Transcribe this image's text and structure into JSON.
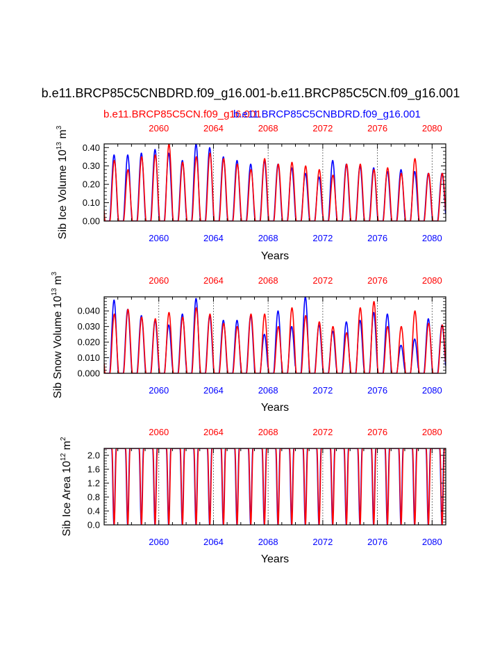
{
  "title": "b.e11.BRCP85C5CNBDRD.f09_g16.001-b.e11.BRCP85C5CN.f09_g16.001",
  "legend": {
    "red_label": "b.e11.BRCP85C5CN.f09_g16.001",
    "blue_label": "b.e11.BRCP85C5CNBDRD.f09_g16.001"
  },
  "colors": {
    "red": "#ff0000",
    "blue": "#0000ff",
    "axis": "#000000"
  },
  "chart_data": [
    {
      "type": "line",
      "name": "sib-ice-volume",
      "ylabel": "Sib Ice Volume 10",
      "ylabel_exp": "13",
      "ylabel_unit": " m",
      "ylabel_unit_exp": "3",
      "xlabel": "Years",
      "xlim": [
        2056.0,
        2081.0
      ],
      "ylim": [
        0.0,
        0.42
      ],
      "yticks": [
        0.0,
        0.1,
        0.2,
        0.3,
        0.4
      ],
      "ytick_labels": [
        "0.00",
        "0.10",
        "0.20",
        "0.30",
        "0.40"
      ],
      "xticks": [
        2060,
        2064,
        2068,
        2072,
        2076,
        2080
      ],
      "xtick_labels": [
        "2060",
        "2064",
        "2068",
        "2072",
        "2076",
        "2080"
      ],
      "series": [
        {
          "name": "b.e11.BRCP85C5CNBDRD.f09_g16.001",
          "color": "#0000ff",
          "annual_peaks": [
            0.36,
            0.36,
            0.37,
            0.39,
            0.37,
            0.33,
            0.42,
            0.4,
            0.35,
            0.33,
            0.31,
            0.33,
            0.31,
            0.29,
            0.26,
            0.24,
            0.33,
            0.31,
            0.3,
            0.29,
            0.27,
            0.28,
            0.27,
            0.26,
            0.26
          ]
        },
        {
          "name": "b.e11.BRCP85C5CN.f09_g16.001",
          "color": "#ff0000",
          "annual_peaks": [
            0.33,
            0.28,
            0.35,
            0.36,
            0.42,
            0.32,
            0.35,
            0.37,
            0.34,
            0.31,
            0.28,
            0.34,
            0.31,
            0.32,
            0.3,
            0.28,
            0.25,
            0.31,
            0.31,
            0.28,
            0.29,
            0.26,
            0.34,
            0.26,
            0.26
          ]
        }
      ]
    },
    {
      "type": "line",
      "name": "sib-snow-volume",
      "ylabel": "Sib Snow Volume 10",
      "ylabel_exp": "13",
      "ylabel_unit": " m",
      "ylabel_unit_exp": "3",
      "xlabel": "Years",
      "xlim": [
        2056.0,
        2081.0
      ],
      "ylim": [
        0.0,
        0.049
      ],
      "yticks": [
        0.0,
        0.01,
        0.02,
        0.03,
        0.04
      ],
      "ytick_labels": [
        "0.000",
        "0.010",
        "0.020",
        "0.030",
        "0.040"
      ],
      "xticks": [
        2060,
        2064,
        2068,
        2072,
        2076,
        2080
      ],
      "xtick_labels": [
        "2060",
        "2064",
        "2068",
        "2072",
        "2076",
        "2080"
      ],
      "series": [
        {
          "name": "b.e11.BRCP85C5CNBDRD.f09_g16.001",
          "color": "#0000ff",
          "annual_peaks": [
            0.047,
            0.041,
            0.037,
            0.034,
            0.031,
            0.038,
            0.048,
            0.037,
            0.034,
            0.034,
            0.037,
            0.025,
            0.04,
            0.03,
            0.049,
            0.031,
            0.027,
            0.033,
            0.034,
            0.039,
            0.038,
            0.018,
            0.022,
            0.035,
            0.031
          ]
        },
        {
          "name": "b.e11.BRCP85C5CN.f09_g16.001",
          "color": "#ff0000",
          "annual_peaks": [
            0.038,
            0.041,
            0.036,
            0.035,
            0.039,
            0.036,
            0.042,
            0.038,
            0.032,
            0.03,
            0.038,
            0.038,
            0.03,
            0.042,
            0.037,
            0.033,
            0.03,
            0.026,
            0.042,
            0.046,
            0.03,
            0.03,
            0.04,
            0.032,
            0.031
          ]
        }
      ]
    },
    {
      "type": "line",
      "name": "sib-ice-area",
      "ylabel": "Sib Ice Area 10",
      "ylabel_exp": "12",
      "ylabel_unit": " m",
      "ylabel_unit_exp": "2",
      "xlabel": "Years",
      "xlim": [
        2056.0,
        2081.0
      ],
      "ylim": [
        0.0,
        2.2
      ],
      "yticks": [
        0.0,
        0.4,
        0.8,
        1.2,
        1.6,
        2.0
      ],
      "ytick_labels": [
        "0.0",
        "0.4",
        "0.8",
        "1.2",
        "1.6",
        "2.0"
      ],
      "xticks": [
        2060,
        2064,
        2068,
        2072,
        2076,
        2080
      ],
      "xtick_labels": [
        "2060",
        "2064",
        "2068",
        "2072",
        "2076",
        "2080"
      ],
      "series": [
        {
          "name": "b.e11.BRCP85C5CNBDRD.f09_g16.001",
          "color": "#0000ff",
          "annual_peaks": [
            2.2,
            2.2,
            2.2,
            2.2,
            2.2,
            2.2,
            2.2,
            2.2,
            2.2,
            2.2,
            2.2,
            2.2,
            2.2,
            2.2,
            2.2,
            2.2,
            2.2,
            2.2,
            2.2,
            2.2,
            2.2,
            2.2,
            2.2,
            2.2,
            2.2
          ]
        },
        {
          "name": "b.e11.BRCP85C5CN.f09_g16.001",
          "color": "#ff0000",
          "annual_peaks": [
            2.2,
            2.2,
            2.2,
            2.2,
            2.2,
            2.2,
            2.2,
            2.2,
            2.2,
            2.2,
            2.2,
            2.2,
            2.2,
            2.2,
            2.2,
            2.2,
            2.2,
            2.2,
            2.2,
            2.2,
            2.2,
            2.2,
            2.2,
            2.2,
            2.2
          ]
        }
      ]
    }
  ]
}
